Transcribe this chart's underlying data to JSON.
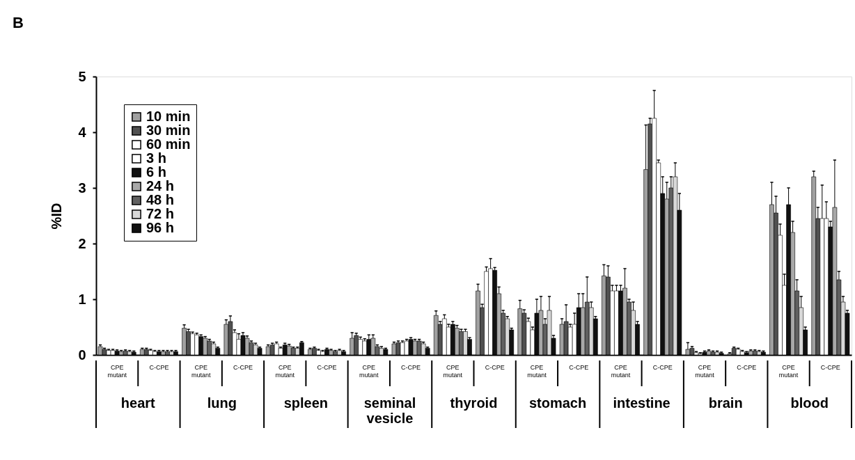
{
  "chart_data": {
    "type": "bar",
    "title": "B",
    "ylabel": "%ID",
    "categories": [
      "CPE mutant",
      "C-CPE",
      "CPE mutant",
      "C-CPE",
      "CPE mutant",
      "C-CPE",
      "CPE mutant",
      "C-CPE",
      "CPE mutant",
      "C-CPE",
      "CPE mutant",
      "C-CPE",
      "CPE mutant",
      "C-CPE",
      "CPE mutant",
      "C-CPE",
      "CPE mutant",
      "C-CPE"
    ],
    "annotations": [
      "heart",
      "lung",
      "spleen",
      "seminal vesicle",
      "thyroid",
      "stomach",
      "intestine",
      "brain",
      "blood"
    ],
    "ylim": [
      0,
      5
    ],
    "yticks": [
      0,
      1,
      2,
      3,
      4,
      5
    ],
    "grid": false,
    "legend": "top left",
    "series": [
      {
        "name": "10 min",
        "color": "#a0a0a0",
        "values": [
          0.15,
          0.1,
          0.48,
          0.55,
          0.15,
          0.1,
          0.3,
          0.2,
          0.71,
          1.15,
          0.83,
          0.55,
          1.42,
          3.33,
          0.1,
          0.02,
          2.7,
          3.2
        ],
        "errors": [
          0.03,
          0.02,
          0.06,
          0.08,
          0.03,
          0.02,
          0.1,
          0.03,
          0.08,
          0.12,
          0.15,
          0.1,
          0.2,
          0.8,
          0.12,
          0.02,
          0.4,
          0.1
        ]
      },
      {
        "name": "30 min",
        "color": "#505050",
        "values": [
          0.1,
          0.1,
          0.42,
          0.6,
          0.18,
          0.12,
          0.35,
          0.22,
          0.55,
          0.85,
          0.75,
          0.6,
          1.4,
          4.15,
          0.12,
          0.12,
          2.55,
          2.45
        ],
        "errors": [
          0.02,
          0.02,
          0.04,
          0.1,
          0.03,
          0.02,
          0.04,
          0.03,
          0.05,
          0.06,
          0.06,
          0.3,
          0.2,
          0.1,
          0.03,
          0.02,
          0.3,
          0.2
        ]
      },
      {
        "name": "60 min",
        "color": "#ffffff",
        "values": [
          0.08,
          0.08,
          0.38,
          0.4,
          0.2,
          0.08,
          0.28,
          0.22,
          0.65,
          1.5,
          0.6,
          0.5,
          1.15,
          4.25,
          0.04,
          0.1,
          2.15,
          2.45
        ],
        "errors": [
          0.02,
          0.02,
          0.03,
          0.05,
          0.03,
          0.02,
          0.04,
          0.03,
          0.07,
          0.08,
          0.06,
          0.05,
          0.1,
          0.5,
          0.02,
          0.02,
          0.2,
          0.6
        ]
      },
      {
        "name": "3 h",
        "color": "#ffffff",
        "values": [
          0.08,
          0.06,
          0.36,
          0.28,
          0.12,
          0.06,
          0.25,
          0.25,
          0.5,
          1.55,
          0.45,
          0.55,
          1.15,
          3.45,
          0.02,
          0.06,
          1.25,
          2.45
        ],
        "errors": [
          0.02,
          0.02,
          0.03,
          0.1,
          0.02,
          0.02,
          0.04,
          0.03,
          0.05,
          0.18,
          0.05,
          0.2,
          0.1,
          0.05,
          0.02,
          0.02,
          0.2,
          0.3
        ]
      },
      {
        "name": "6 h",
        "color": "#111111",
        "values": [
          0.07,
          0.06,
          0.33,
          0.35,
          0.18,
          0.1,
          0.28,
          0.28,
          0.55,
          1.52,
          0.75,
          0.85,
          1.15,
          2.9,
          0.05,
          0.04,
          2.7,
          2.3
        ],
        "errors": [
          0.02,
          0.02,
          0.03,
          0.05,
          0.03,
          0.02,
          0.08,
          0.03,
          0.05,
          0.05,
          0.25,
          0.25,
          0.1,
          0.3,
          0.02,
          0.02,
          0.3,
          0.1
        ]
      },
      {
        "name": "24 h",
        "color": "#a8a8a8",
        "values": [
          0.06,
          0.06,
          0.3,
          0.3,
          0.16,
          0.08,
          0.3,
          0.25,
          0.48,
          1.1,
          0.8,
          0.85,
          1.2,
          2.8,
          0.07,
          0.07,
          2.2,
          2.65
        ],
        "errors": [
          0.02,
          0.02,
          0.03,
          0.04,
          0.03,
          0.02,
          0.06,
          0.03,
          0.05,
          0.12,
          0.25,
          0.25,
          0.35,
          0.3,
          0.02,
          0.02,
          0.2,
          0.85
        ]
      },
      {
        "name": "48 h",
        "color": "#606060",
        "values": [
          0.07,
          0.06,
          0.25,
          0.22,
          0.12,
          0.06,
          0.15,
          0.25,
          0.42,
          0.75,
          0.55,
          0.95,
          0.95,
          3.0,
          0.05,
          0.07,
          1.15,
          1.35
        ],
        "errors": [
          0.02,
          0.02,
          0.03,
          0.03,
          0.02,
          0.02,
          0.03,
          0.03,
          0.04,
          0.05,
          0.1,
          0.45,
          0.05,
          0.2,
          0.02,
          0.02,
          0.2,
          0.15
        ]
      },
      {
        "name": "72 h",
        "color": "#d8d8d8",
        "values": [
          0.06,
          0.06,
          0.2,
          0.18,
          0.12,
          0.08,
          0.12,
          0.2,
          0.42,
          0.65,
          0.8,
          0.85,
          0.8,
          3.2,
          0.05,
          0.06,
          0.85,
          0.95
        ],
        "errors": [
          0.02,
          0.02,
          0.03,
          0.03,
          0.02,
          0.02,
          0.03,
          0.03,
          0.04,
          0.04,
          0.25,
          0.1,
          0.15,
          0.25,
          0.02,
          0.02,
          0.2,
          0.1
        ]
      },
      {
        "name": "96 h",
        "color": "#111111",
        "values": [
          0.05,
          0.06,
          0.12,
          0.12,
          0.22,
          0.06,
          0.1,
          0.12,
          0.28,
          0.45,
          0.3,
          0.65,
          0.55,
          2.6,
          0.03,
          0.05,
          0.45,
          0.75
        ],
        "errors": [
          0.02,
          0.02,
          0.02,
          0.02,
          0.02,
          0.02,
          0.02,
          0.02,
          0.03,
          0.03,
          0.05,
          0.04,
          0.05,
          0.3,
          0.02,
          0.02,
          0.05,
          0.05
        ]
      }
    ]
  }
}
